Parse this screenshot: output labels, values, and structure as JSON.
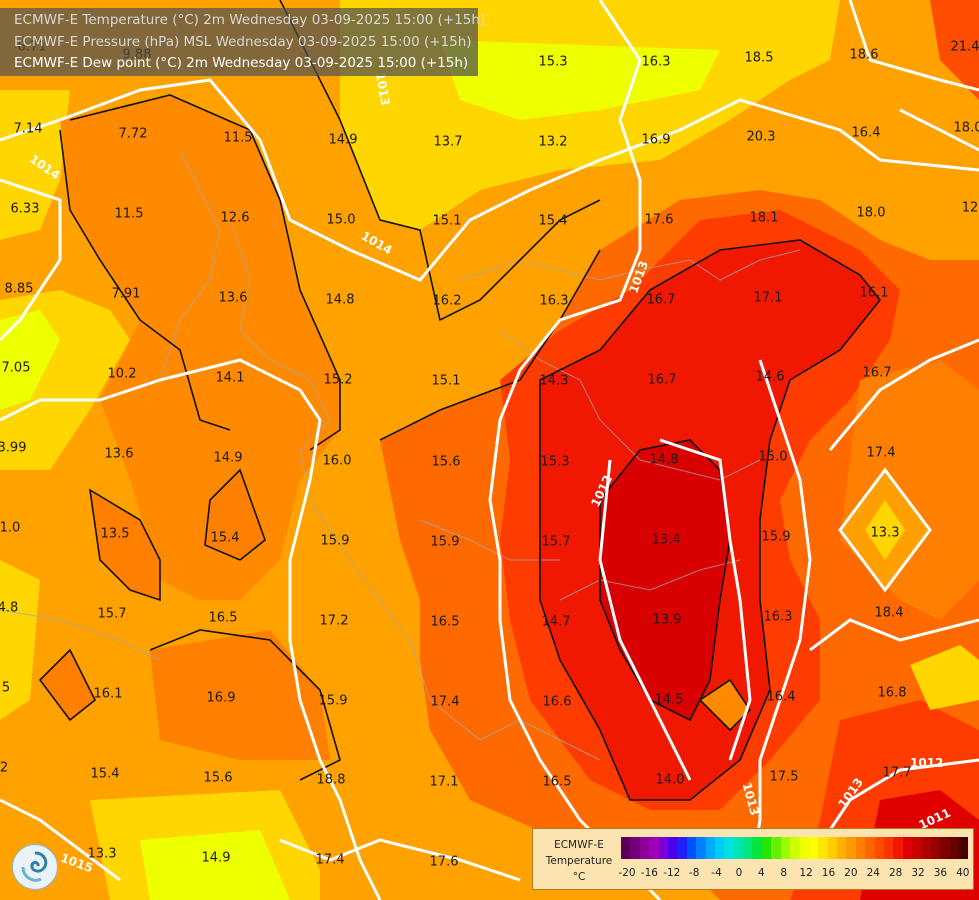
{
  "titles": {
    "line1": "ECMWF-E Temperature (°C) 2m Wednesday 03-09-2025 15:00 (+15h)",
    "line2": "ECMWF-E Pressure (hPa) MSL Wednesday 03-09-2025 15:00 (+15h)",
    "line3": "ECMWF-E Dew point (°C) 2m Wednesday 03-09-2025 15:00 (+15h)"
  },
  "dewpoints": [
    {
      "v": "6.71"
    },
    {
      "v": "9.88"
    },
    {
      "v": "15.3"
    },
    {
      "v": "16.3"
    },
    {
      "v": "18.5"
    },
    {
      "v": "18.6"
    },
    {
      "v": "21.4"
    },
    {
      "v": "7.14"
    },
    {
      "v": "7.72"
    },
    {
      "v": "11.5"
    },
    {
      "v": "14.9"
    },
    {
      "v": "13.7"
    },
    {
      "v": "13.2"
    },
    {
      "v": "16.9"
    },
    {
      "v": "20.3"
    },
    {
      "v": "16.4"
    },
    {
      "v": "18.0"
    },
    {
      "v": "6.33"
    },
    {
      "v": "11.5"
    },
    {
      "v": "12.6"
    },
    {
      "v": "15.0"
    },
    {
      "v": "15.1"
    },
    {
      "v": "15.4"
    },
    {
      "v": "17.6"
    },
    {
      "v": "18.1"
    },
    {
      "v": "18.0"
    },
    {
      "v": "12"
    },
    {
      "v": "8.85"
    },
    {
      "v": "7.91"
    },
    {
      "v": "13.6"
    },
    {
      "v": "14.8"
    },
    {
      "v": "16.2"
    },
    {
      "v": "16.3"
    },
    {
      "v": "16.7"
    },
    {
      "v": "17.1"
    },
    {
      "v": "16.1"
    },
    {
      "v": "7.05"
    },
    {
      "v": "10.2"
    },
    {
      "v": "14.1"
    },
    {
      "v": "15.2"
    },
    {
      "v": "15.1"
    },
    {
      "v": "14.3"
    },
    {
      "v": "16.7"
    },
    {
      "v": "14.6"
    },
    {
      "v": "16.7"
    },
    {
      "v": "3.99"
    },
    {
      "v": "13.6"
    },
    {
      "v": "14.9"
    },
    {
      "v": "16.0"
    },
    {
      "v": "15.6"
    },
    {
      "v": "15.3"
    },
    {
      "v": "14.8"
    },
    {
      "v": "15.0"
    },
    {
      "v": "17.4"
    },
    {
      "v": "1.0"
    },
    {
      "v": "13.5"
    },
    {
      "v": "15.4"
    },
    {
      "v": "15.9"
    },
    {
      "v": "15.9"
    },
    {
      "v": "15.7"
    },
    {
      "v": "13.4"
    },
    {
      "v": "15.9"
    },
    {
      "v": "13.3"
    },
    {
      "v": "4.8"
    },
    {
      "v": "15.7"
    },
    {
      "v": "16.5"
    },
    {
      "v": "17.2"
    },
    {
      "v": "16.5"
    },
    {
      "v": "14.7"
    },
    {
      "v": "13.9"
    },
    {
      "v": "16.3"
    },
    {
      "v": "18.4"
    },
    {
      "v": "16.1"
    },
    {
      "v": "16.9"
    },
    {
      "v": "15.9"
    },
    {
      "v": "17.4"
    },
    {
      "v": "16.6"
    },
    {
      "v": "14.5"
    },
    {
      "v": "16.4"
    },
    {
      "v": "16.8"
    },
    {
      "v": "5"
    },
    {
      "v": "15.4"
    },
    {
      "v": "15.6"
    },
    {
      "v": "18.8"
    },
    {
      "v": "17.1"
    },
    {
      "v": "16.5"
    },
    {
      "v": "14.0"
    },
    {
      "v": "17.5"
    },
    {
      "v": "17.7"
    },
    {
      "v": "2"
    },
    {
      "v": "13.3"
    },
    {
      "v": "14.9"
    },
    {
      "v": "17.4"
    },
    {
      "v": "17.6"
    }
  ],
  "isobar_labels": [
    "1014",
    "1013",
    "1014",
    "1013",
    "1012",
    "1012",
    "1013",
    "1013",
    "1011",
    "1015"
  ],
  "legend": {
    "title_line1": "ECMWF-E",
    "title_line2": "Temperature",
    "unit": "°C",
    "ticks": [
      "-20",
      "-16",
      "-12",
      "-8",
      "-4",
      "0",
      "4",
      "8",
      "12",
      "16",
      "20",
      "24",
      "28",
      "32",
      "36",
      "40"
    ],
    "colors": [
      "#5a005a",
      "#73007a",
      "#8c0099",
      "#9c00b8",
      "#7a00d6",
      "#4b00e6",
      "#2020ff",
      "#0050ff",
      "#0080ff",
      "#00aaff",
      "#00ccff",
      "#00e0e0",
      "#00e6b0",
      "#00e680",
      "#00e640",
      "#20e600",
      "#66f000",
      "#99ff00",
      "#ccff00",
      "#eeff00",
      "#ffff00",
      "#ffe600",
      "#ffcc00",
      "#ffb000",
      "#ff9900",
      "#ff8000",
      "#ff6600",
      "#ff4d00",
      "#ff3300",
      "#f01800",
      "#e00000",
      "#c80000",
      "#b00000",
      "#960000",
      "#7d0000",
      "#640000",
      "#4b0000"
    ]
  }
}
